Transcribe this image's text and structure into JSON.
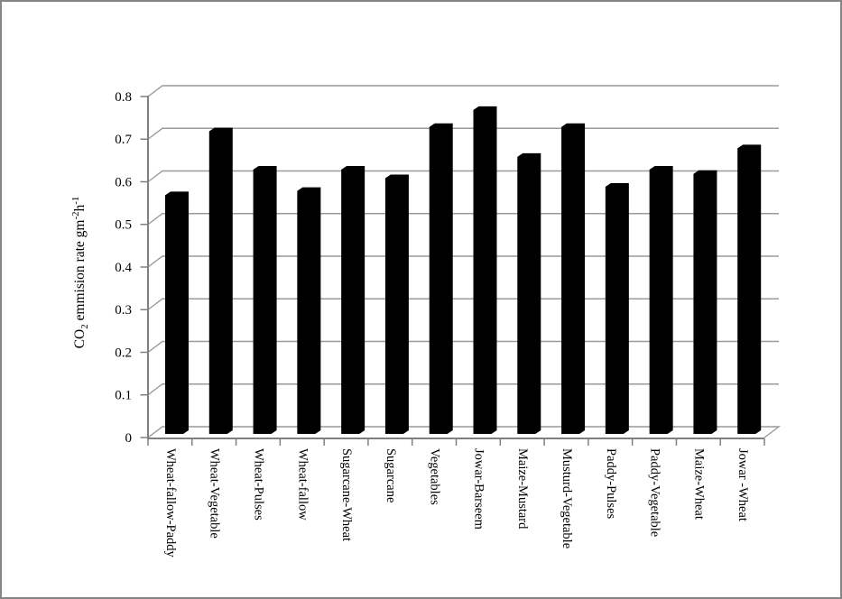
{
  "frame": {
    "border_color": "#858585",
    "background": "#ffffff"
  },
  "chart_data": {
    "type": "bar",
    "style": "3d-depth-column",
    "title": "",
    "ylabel_text": "CO2 emmision rate gm-2h-1",
    "ylabel_parts": {
      "base1": "CO",
      "sub1": "2",
      "base2": " emmision rate gm",
      "sup1": "-2",
      "base3": "h",
      "sup2": "-1"
    },
    "xlabel": "",
    "categories": [
      "Wheat-fallow-Paddy",
      "Wheat-Vegetable",
      "Wheat-Pulses",
      "Wheat-fallow",
      "Sugarcane-Wheat",
      "Sugarcane",
      "Vegetables",
      "Jowar-Barseem",
      "Maize-Mustard",
      "Musturd-Vegetable",
      "Paddy-Pulses",
      "Paddy-Vegetable",
      "Maize-Wheat",
      "Jowar -Wheat"
    ],
    "values": [
      0.56,
      0.71,
      0.62,
      0.57,
      0.62,
      0.6,
      0.72,
      0.76,
      0.65,
      0.72,
      0.58,
      0.62,
      0.61,
      0.67
    ],
    "y_ticks": [
      "0",
      "0.1",
      "0.2",
      "0.3",
      "0.4",
      "0.5",
      "0.6",
      "0.7",
      "0.8"
    ],
    "ylim": [
      0,
      0.8
    ],
    "grid": "horizontal",
    "legend": "none",
    "bar_color": "#000000",
    "gridline_color": "#9a9a9a",
    "axis_color": "#7f7f7f",
    "tick_label_color": "#000000"
  }
}
